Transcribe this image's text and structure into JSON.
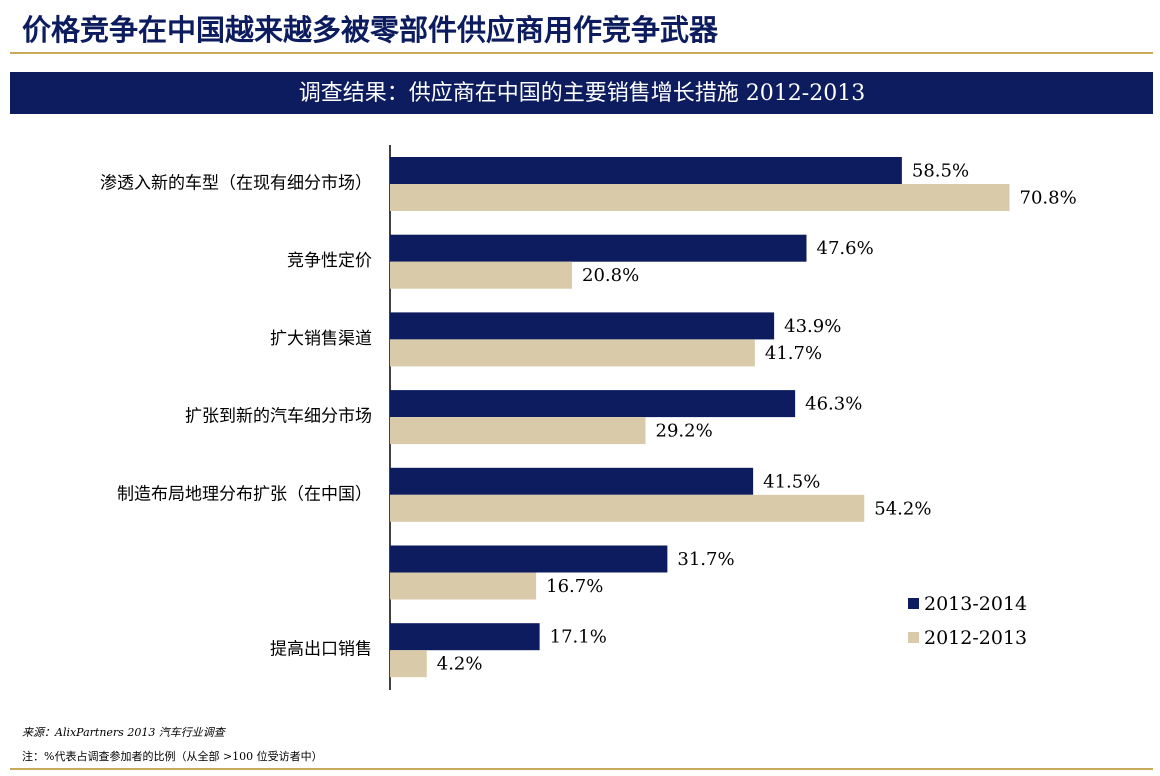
{
  "chart_data": {
    "type": "hbar",
    "title": "价格竞争在中国越来越多被零部件供应商用作竞争武器",
    "subtitle": "调查结果：供应商在中国的主要销售增长措施 2012-2013",
    "categories": [
      "渗透入新的车型（在现有细分市场）",
      "竞争性定价",
      "扩大销售渠道",
      "扩张到新的汽车细分市场",
      "制造布局地理分布扩张（在中国）",
      "",
      "提高出口销售"
    ],
    "series": [
      {
        "name": "2013-2014",
        "color": "#0c1c5e",
        "values": [
          58.5,
          47.6,
          43.9,
          46.3,
          41.5,
          31.7,
          17.1
        ],
        "value_labels": [
          "58.5%",
          "47.6%",
          "43.9%",
          "46.3%",
          "41.5%",
          "31.7%",
          "17.1%"
        ]
      },
      {
        "name": "2012-2013",
        "color": "#d9cba9",
        "values": [
          70.8,
          20.8,
          41.7,
          29.2,
          54.2,
          16.7,
          4.2
        ],
        "value_labels": [
          "70.8%",
          "20.8%",
          "41.7%",
          "29.2%",
          "54.2%",
          "16.7%",
          "4.2%"
        ]
      }
    ],
    "xlim": [
      0,
      80
    ],
    "legend": "lower right",
    "source": "来源：AlixPartners 2013 汽车行业调查",
    "note": "注：%代表占调查参加者的比例（从全部 >100 位受访者中）"
  }
}
